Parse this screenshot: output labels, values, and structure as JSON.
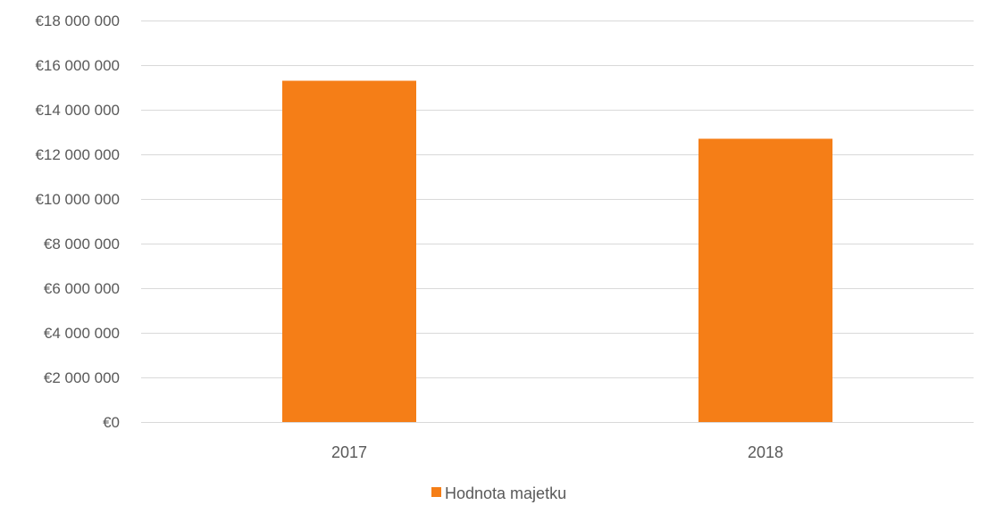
{
  "chart_data": {
    "type": "bar",
    "categories": [
      "2017",
      "2018"
    ],
    "series": [
      {
        "name": "Hodnota majetku",
        "values": [
          15300000,
          12700000
        ],
        "color": "#f57e17"
      }
    ],
    "ylim": [
      0,
      18000000
    ],
    "yticks": [
      0,
      2000000,
      4000000,
      6000000,
      8000000,
      10000000,
      12000000,
      14000000,
      16000000,
      18000000
    ],
    "ytick_labels": [
      "€0",
      "€2 000 000",
      "€4 000 000",
      "€6 000 000",
      "€8 000 000",
      "€10 000 000",
      "€12 000 000",
      "€14 000 000",
      "€16 000 000",
      "€18 000 000"
    ],
    "grid": true,
    "gridline_color": "#d9d9d9",
    "legend_position": "bottom"
  }
}
